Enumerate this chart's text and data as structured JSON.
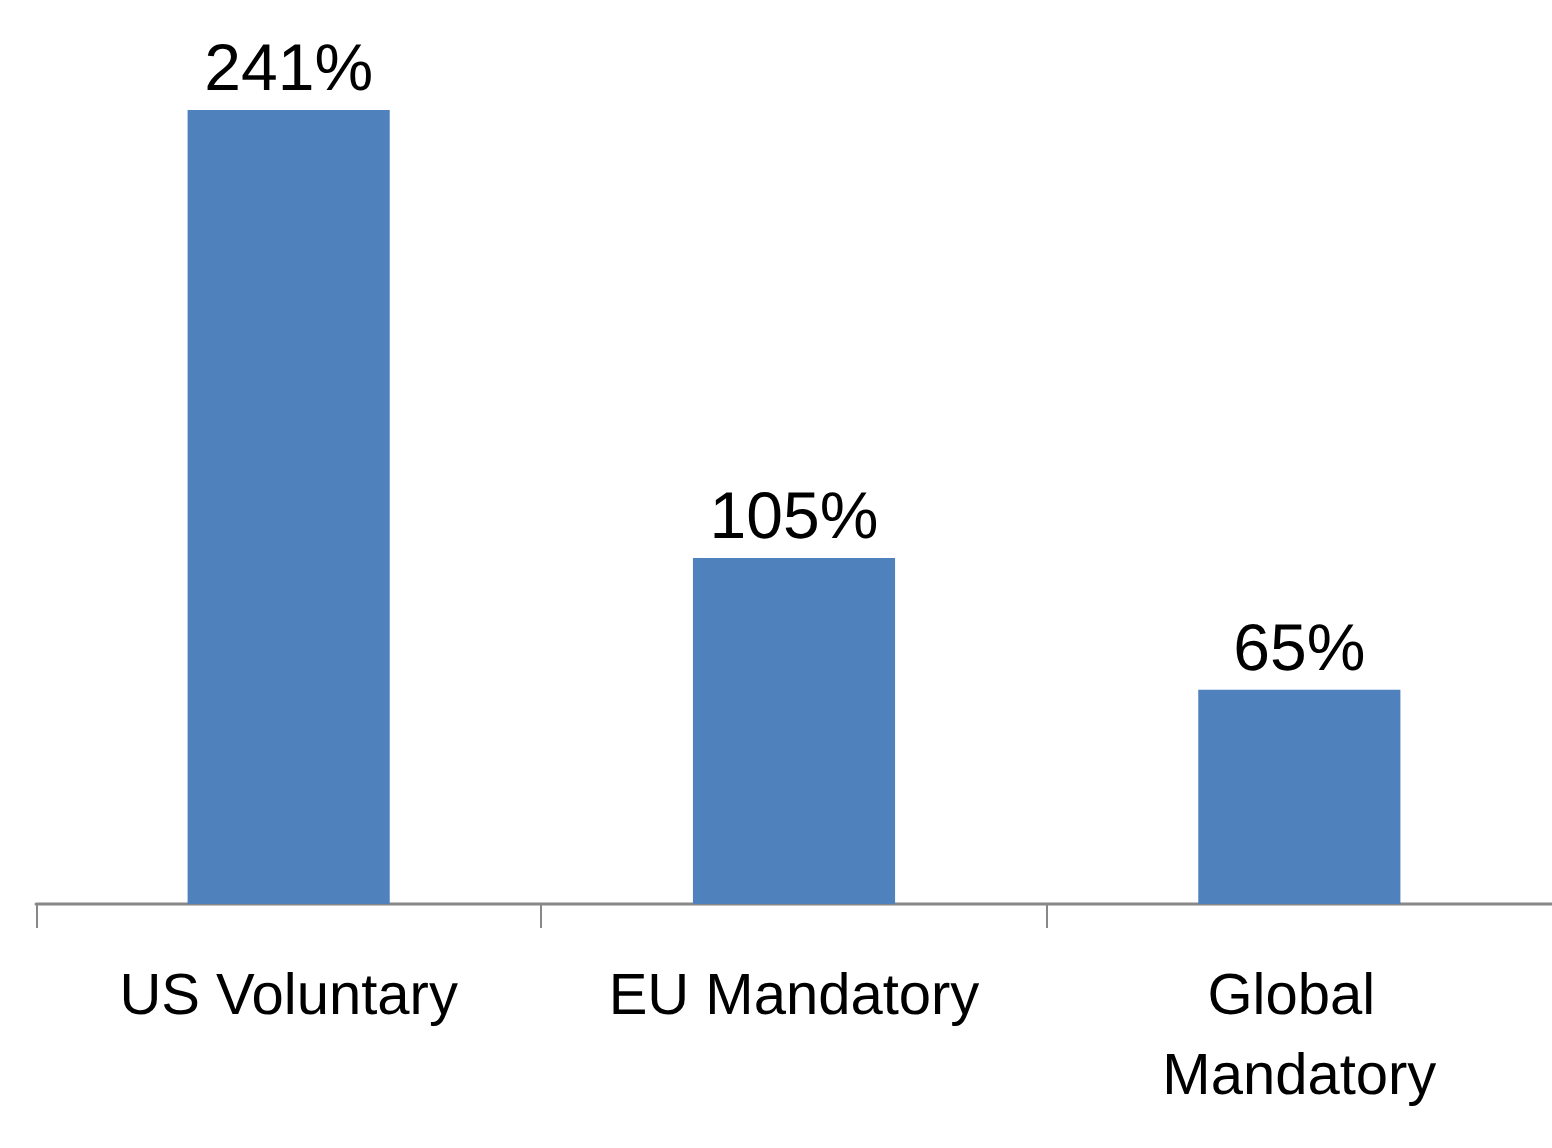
{
  "chart_data": {
    "type": "bar",
    "categories": [
      "US Voluntary",
      "EU Mandatory",
      "Global Mandatory"
    ],
    "values": [
      241,
      105,
      65
    ],
    "value_labels": [
      "241%",
      "105%",
      "65%"
    ],
    "color": "#4f81bd"
  }
}
